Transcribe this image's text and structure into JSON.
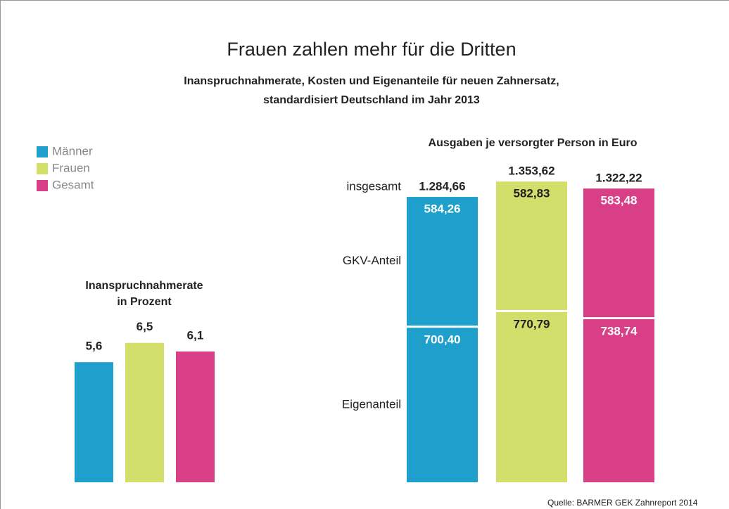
{
  "title": "Frauen zahlen mehr für die Dritten",
  "subtitle": [
    "Inanspruchnahmerate, Kosten und Eigenanteile für neuen Zahnersatz,",
    "standardisiert Deutschland im Jahr 2013"
  ],
  "source": "Quelle: BARMER GEK Zahnreport 2014",
  "chart_data": [
    {
      "type": "bar",
      "title": [
        "Inanspruchnahmerate",
        "in Prozent"
      ],
      "categories": [
        "Männer",
        "Frauen",
        "Gesamt"
      ],
      "colors": [
        "#1fa0cc",
        "#d4de6a",
        "#d93f87"
      ],
      "values": [
        5.6,
        6.5,
        6.1
      ],
      "value_labels": [
        "5,6",
        "6,5",
        "6,1"
      ]
    },
    {
      "type": "stacked_bar",
      "title": "Ausgaben je versorgter Person in Euro",
      "series": [
        {
          "name": "Eigenanteil",
          "values": [
            700.4,
            770.79,
            738.74
          ],
          "value_labels": [
            "700,40",
            "770,79",
            "738,74"
          ]
        },
        {
          "name": "GKV-Anteil",
          "values": [
            584.26,
            582.83,
            583.48
          ],
          "value_labels": [
            "584,26",
            "582,83",
            "583,48"
          ]
        }
      ],
      "total_label": "insgesamt",
      "totals": [
        1284.66,
        1353.62,
        1322.22
      ],
      "total_labels": [
        "1.284,66",
        "1.353,62",
        "1.322,22"
      ]
    }
  ]
}
